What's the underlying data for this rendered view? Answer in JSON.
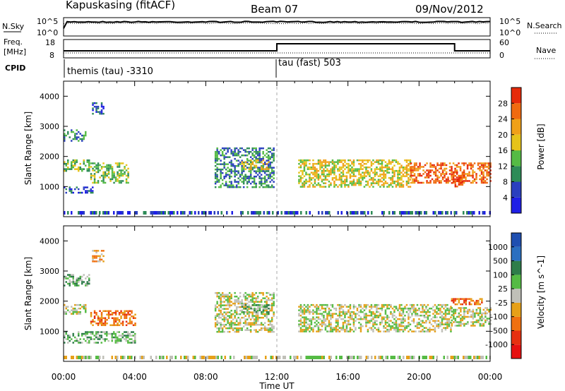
{
  "header": {
    "station": "Kapuskasing (fitACF)",
    "beam": "Beam 07",
    "date": "09/Nov/2012"
  },
  "strip1": {
    "left_label": "N.Sky",
    "right_label": "N.Search",
    "left_ticks": [
      "10^5",
      "10^0"
    ],
    "right_ticks": [
      "10^5",
      "10^0"
    ]
  },
  "strip2": {
    "left_label_1": "Freq.",
    "left_label_2": "[MHz]",
    "right_label": "Nave",
    "left_ticks": [
      "18",
      "8"
    ],
    "right_ticks": [
      "60",
      "0"
    ]
  },
  "cpid": {
    "label": "CPID",
    "left_program": "themis (tau) -3310",
    "right_program": "tau (fast) 503"
  },
  "colors": {
    "power": [
      "#1f1fe6",
      "#2a3fbf",
      "#2e8b57",
      "#55bb44",
      "#e6c31a",
      "#f0a018",
      "#f06a10",
      "#e62a0a"
    ],
    "velocity": [
      "#1f4fb0",
      "#2a6fc0",
      "#2e7d4a",
      "#55bb44",
      "#c0c0b8",
      "#e6a018",
      "#f07010",
      "#e63010",
      "#e61010"
    ]
  },
  "chart_data": [
    {
      "type": "heatmap",
      "title": "Power",
      "xlabel": "",
      "ylabel": "Slant Range [km]",
      "xlim": [
        "00:00",
        "00:00"
      ],
      "ylim": [
        0,
        4500
      ],
      "y_ticks": [
        "1000",
        "2000",
        "3000",
        "4000"
      ],
      "colorbar": {
        "label": "Power [dB]",
        "ticks": [
          "4",
          "8",
          "12",
          "16",
          "20",
          "24",
          "28"
        ]
      },
      "regions": [
        {
          "x0": 0.0,
          "x1": 1.2,
          "y0": 2500,
          "y1": 2900,
          "level": 2
        },
        {
          "x0": 0.0,
          "x1": 1.4,
          "y0": 1500,
          "y1": 1900,
          "level": 3
        },
        {
          "x0": 0.0,
          "x1": 1.6,
          "y0": 800,
          "y1": 1000,
          "level": 1
        },
        {
          "x0": 1.5,
          "x1": 3.6,
          "y0": 1100,
          "y1": 1800,
          "level": 3
        },
        {
          "x0": 1.6,
          "x1": 2.2,
          "y0": 3400,
          "y1": 3800,
          "level": 1
        },
        {
          "x0": 8.5,
          "x1": 11.8,
          "y0": 1000,
          "y1": 2300,
          "level": 2
        },
        {
          "x0": 10.0,
          "x1": 11.5,
          "y0": 1600,
          "y1": 1900,
          "level": 4
        },
        {
          "x0": 13.2,
          "x1": 19.5,
          "y0": 1000,
          "y1": 1900,
          "level": 4
        },
        {
          "x0": 19.5,
          "x1": 24.0,
          "y0": 1100,
          "y1": 1800,
          "level": 6
        },
        {
          "x0": 21.8,
          "x1": 22.5,
          "y0": 1000,
          "y1": 1500,
          "level": 7
        }
      ]
    },
    {
      "type": "heatmap",
      "title": "Velocity",
      "xlabel": "Time UT",
      "ylabel": "Slant Range [km]",
      "xlim": [
        "00:00",
        "00:00"
      ],
      "ylim": [
        0,
        4500
      ],
      "x_ticks": [
        "00:00",
        "04:00",
        "08:00",
        "12:00",
        "16:00",
        "20:00",
        "00:00"
      ],
      "y_ticks": [
        "1000",
        "2000",
        "3000",
        "4000"
      ],
      "colorbar": {
        "label": "Velocity [m s^-1]",
        "ticks": [
          "1000",
          "500",
          "100",
          "25",
          "-25",
          "-100",
          "-500",
          "-1000"
        ]
      },
      "regions": [
        {
          "x0": 0.0,
          "x1": 1.2,
          "y0": 1600,
          "y1": 1900,
          "level": 4
        },
        {
          "x0": 0.0,
          "x1": 1.4,
          "y0": 2500,
          "y1": 2900,
          "level": 3
        },
        {
          "x0": 0.0,
          "x1": 4.0,
          "y0": 600,
          "y1": 1000,
          "level": 3
        },
        {
          "x0": 1.5,
          "x1": 4.0,
          "y0": 1200,
          "y1": 1700,
          "level": 6
        },
        {
          "x0": 1.6,
          "x1": 2.2,
          "y0": 3300,
          "y1": 3700,
          "level": 5
        },
        {
          "x0": 8.5,
          "x1": 11.8,
          "y0": 1000,
          "y1": 2300,
          "level": 4
        },
        {
          "x0": 10.0,
          "x1": 11.5,
          "y0": 1600,
          "y1": 1900,
          "level": 3
        },
        {
          "x0": 13.2,
          "x1": 21.8,
          "y0": 1000,
          "y1": 1900,
          "level": 4
        },
        {
          "x0": 21.8,
          "x1": 24.0,
          "y0": 1200,
          "y1": 1800,
          "level": 4
        },
        {
          "x0": 21.8,
          "x1": 23.5,
          "y0": 1900,
          "y1": 2100,
          "level": 6
        }
      ]
    }
  ]
}
